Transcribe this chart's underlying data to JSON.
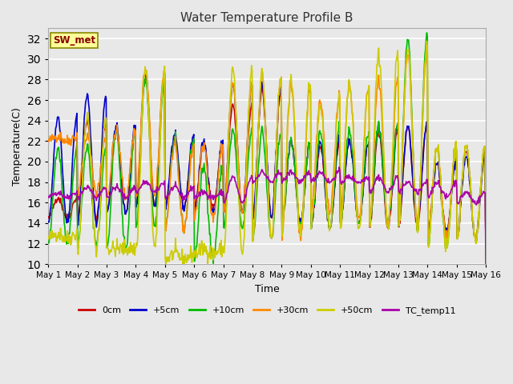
{
  "title": "Water Temperature Profile B",
  "xlabel": "Time",
  "ylabel": "Temperature(C)",
  "ylim": [
    10,
    33
  ],
  "yticks": [
    10,
    12,
    14,
    16,
    18,
    20,
    22,
    24,
    26,
    28,
    30,
    32
  ],
  "annotation": "SW_met",
  "series_colors": {
    "0cm": "#cc0000",
    "+5cm": "#0000cc",
    "+10cm": "#00bb00",
    "+30cm": "#ff8800",
    "+50cm": "#cccc00",
    "TC_temp11": "#aa00aa"
  },
  "background_color": "#e8e8e8",
  "plot_bg_color": "#e8e8e8",
  "grid_color": "#ffffff",
  "n_days": 15,
  "annotation_bg": "#ffff99",
  "annotation_fg": "#880000",
  "annotation_border": "#888800"
}
